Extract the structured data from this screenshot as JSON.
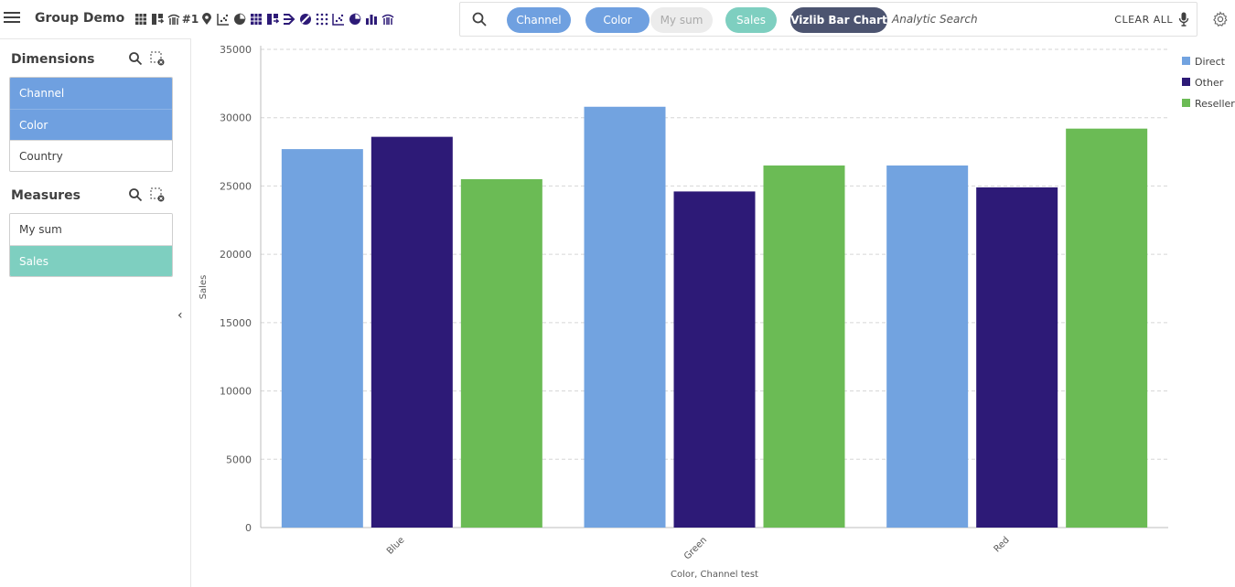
{
  "app": {
    "title": "Group Demo"
  },
  "toolbar": {
    "icons": [
      "table-icon",
      "pivot-icon",
      "bridge-icon",
      "kpi-hash-icon",
      "map-pin-icon",
      "scatter-icon",
      "pie-icon",
      "table-icon",
      "pivot-icon",
      "merge-icon",
      "venn-icon",
      "dots-icon",
      "scatter-icon",
      "pie-icon",
      "bar-chart-icon",
      "bridge-icon"
    ],
    "kpi_symbol": "#1"
  },
  "search": {
    "chips": {
      "channel": "Channel",
      "color": "Color",
      "my_sum": "My sum",
      "sales": "Sales",
      "vizlib": "Vizlib Bar Chart"
    },
    "placeholder": "Analytic Search",
    "clear_all": "CLEAR ALL"
  },
  "colors": {
    "selected_dimension": "#6fa0e0",
    "selected_measure": "#7ecfc0",
    "vizlib_chip": "#4c5470",
    "direct": "#72a3e0",
    "other": "#2d1a77",
    "reseller": "#6bbb55"
  },
  "panel": {
    "dimensions_title": "Dimensions",
    "dimensions": [
      {
        "label": "Channel",
        "selected": true
      },
      {
        "label": "Color",
        "selected": true
      },
      {
        "label": "Country",
        "selected": false
      }
    ],
    "measures_title": "Measures",
    "measures": [
      {
        "label": "My sum",
        "selected": false
      },
      {
        "label": "Sales",
        "selected": true
      }
    ]
  },
  "chart_data": {
    "type": "bar",
    "title": "",
    "xlabel": "Color,   Channel test",
    "ylabel": "Sales",
    "categories": [
      "Blue",
      "Green",
      "Red"
    ],
    "series": [
      {
        "name": "Direct",
        "color": "#72a3e0",
        "values": [
          27700,
          30800,
          26500
        ]
      },
      {
        "name": "Other",
        "color": "#2d1a77",
        "values": [
          28600,
          24600,
          24900
        ]
      },
      {
        "name": "Reseller",
        "color": "#6bbb55",
        "values": [
          25500,
          26500,
          29200
        ]
      }
    ],
    "ylim": [
      0,
      35000
    ],
    "yticks": [
      "0",
      "5000",
      "10000",
      "15000",
      "20000",
      "25000",
      "30000",
      "35000"
    ],
    "grid": true,
    "legend": "top-right"
  }
}
